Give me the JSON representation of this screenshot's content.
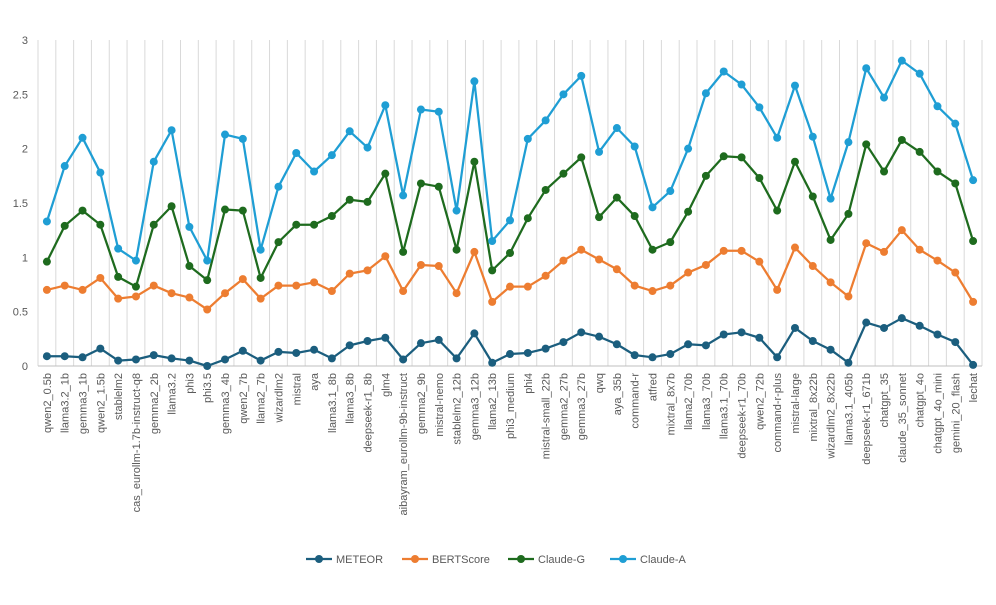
{
  "chart_data": {
    "type": "line",
    "title": "",
    "xlabel": "",
    "ylabel": "",
    "ylim": [
      0,
      3
    ],
    "yticks": [
      "0",
      "0.5",
      "1",
      "1.5",
      "2",
      "2.5",
      "3"
    ],
    "ytick_values": [
      0,
      0.5,
      1,
      1.5,
      2,
      2.5,
      3
    ],
    "grid": "vertical",
    "legend_position": "bottom",
    "categories": [
      "qwen2_0.5b",
      "llama3.2_1b",
      "gemma3_1b",
      "qwen2_1.5b",
      "stablelm2",
      "cas_eurollm-1.7b-instruct-q8",
      "gemma2_2b",
      "llama3.2",
      "phi3",
      "phi3.5",
      "gemma3_4b",
      "qwen2_7b",
      "llama2_7b",
      "wizardlm2",
      "mistral",
      "aya",
      "llama3.1_8b",
      "llama3_8b",
      "deepseek-r1_8b",
      "glm4",
      "aibayram_eurollm-9b-instruct",
      "gemma2_9b",
      "mistral-nemo",
      "stablelm2_12b",
      "gemma3_12b",
      "llama2_13b",
      "phi3_medium",
      "phi4",
      "mistral-small_22b",
      "gemma2_27b",
      "gemma3_27b",
      "qwq",
      "aya_35b",
      "command-r",
      "atfred",
      "mixtral_8x7b",
      "llama2_70b",
      "llama3_70b",
      "llama3.1_70b",
      "deepseek-r1_70b",
      "qwen2_72b",
      "command-r-plus",
      "mistral-large",
      "mixtral_8x22b",
      "wizardlm2_8x22b",
      "llama3.1_405b",
      "deepseek-r1_671b",
      "chatgpt_35",
      "claude_35_sonnet",
      "chatgpt_4o",
      "chatgpt_4o_mini",
      "gemini_20_flash",
      "lechat"
    ],
    "series": [
      {
        "name": "METEOR",
        "color": "#1b5e7e",
        "values": [
          0.09,
          0.09,
          0.08,
          0.16,
          0.05,
          0.06,
          0.1,
          0.07,
          0.05,
          0.0,
          0.06,
          0.14,
          0.05,
          0.13,
          0.12,
          0.15,
          0.07,
          0.19,
          0.23,
          0.26,
          0.06,
          0.21,
          0.24,
          0.07,
          0.3,
          0.03,
          0.11,
          0.12,
          0.16,
          0.22,
          0.31,
          0.27,
          0.2,
          0.1,
          0.08,
          0.11,
          0.2,
          0.19,
          0.29,
          0.31,
          0.26,
          0.08,
          0.35,
          0.23,
          0.15,
          0.03,
          0.4,
          0.35,
          0.44,
          0.37,
          0.29,
          0.22,
          0.01
        ]
      },
      {
        "name": "BERTScore",
        "color": "#ed7d31",
        "values": [
          0.7,
          0.74,
          0.7,
          0.81,
          0.62,
          0.64,
          0.74,
          0.67,
          0.63,
          0.52,
          0.67,
          0.8,
          0.62,
          0.74,
          0.74,
          0.77,
          0.69,
          0.85,
          0.88,
          1.01,
          0.69,
          0.93,
          0.92,
          0.67,
          1.05,
          0.59,
          0.73,
          0.73,
          0.83,
          0.97,
          1.07,
          0.98,
          0.89,
          0.74,
          0.69,
          0.74,
          0.86,
          0.93,
          1.06,
          1.06,
          0.96,
          0.7,
          1.09,
          0.92,
          0.77,
          0.64,
          1.13,
          1.05,
          1.25,
          1.07,
          0.97,
          0.86,
          0.59
        ]
      },
      {
        "name": "Claude-G",
        "color": "#1e6b1e",
        "values": [
          0.96,
          1.29,
          1.43,
          1.3,
          0.82,
          0.73,
          1.3,
          1.47,
          0.92,
          0.79,
          1.44,
          1.43,
          0.81,
          1.14,
          1.3,
          1.3,
          1.38,
          1.53,
          1.51,
          1.77,
          1.05,
          1.68,
          1.65,
          1.07,
          1.88,
          0.88,
          1.04,
          1.36,
          1.62,
          1.77,
          1.92,
          1.37,
          1.55,
          1.38,
          1.07,
          1.14,
          1.42,
          1.75,
          1.93,
          1.92,
          1.73,
          1.43,
          1.88,
          1.56,
          1.16,
          1.4,
          2.04,
          1.79,
          2.08,
          1.97,
          1.79,
          1.68,
          1.15
        ]
      },
      {
        "name": "Claude-A",
        "color": "#1f9ed4",
        "values": [
          1.33,
          1.84,
          2.1,
          1.78,
          1.08,
          0.97,
          1.88,
          2.17,
          1.28,
          0.97,
          2.13,
          2.09,
          1.07,
          1.65,
          1.96,
          1.79,
          1.94,
          2.16,
          2.01,
          2.4,
          1.57,
          2.36,
          2.34,
          1.43,
          2.62,
          1.15,
          1.34,
          2.09,
          2.26,
          2.5,
          2.67,
          1.97,
          2.19,
          2.02,
          1.46,
          1.61,
          2.0,
          2.51,
          2.71,
          2.59,
          2.38,
          2.1,
          2.58,
          2.11,
          1.54,
          2.06,
          2.74,
          2.47,
          2.81,
          2.69,
          2.39,
          2.23,
          1.71
        ]
      }
    ]
  }
}
